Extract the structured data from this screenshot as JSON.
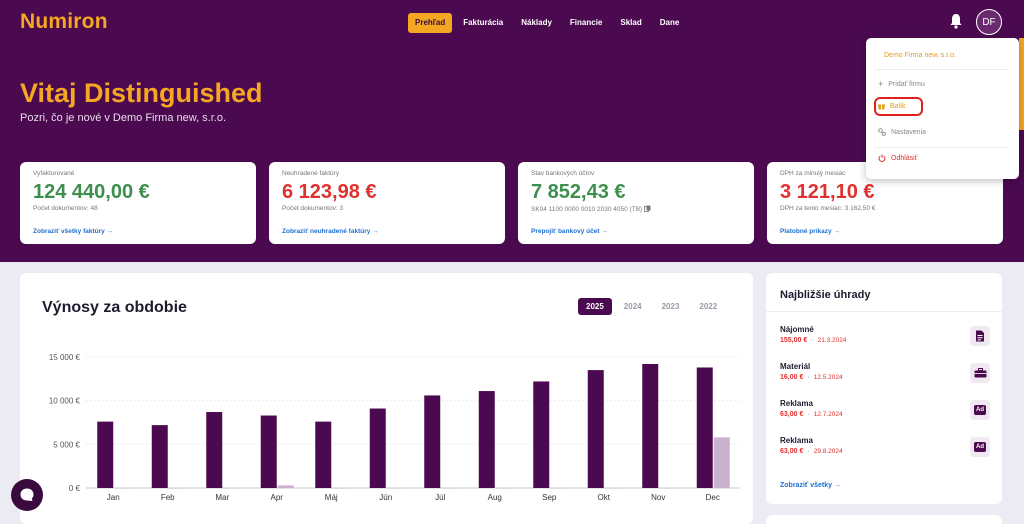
{
  "app": {
    "logo": "Numiron"
  },
  "nav": [
    {
      "label": "Prehľad",
      "active": true
    },
    {
      "label": "Fakturácia",
      "active": false
    },
    {
      "label": "Náklady",
      "active": false
    },
    {
      "label": "Financie",
      "active": false
    },
    {
      "label": "Sklad",
      "active": false
    },
    {
      "label": "Dane",
      "active": false
    }
  ],
  "user": {
    "initials": "DF"
  },
  "welcome": {
    "title": "Vitaj Distinguished",
    "subtitle": "Pozri, čo je nové v Demo Firma new, s.r.o."
  },
  "cards": [
    {
      "label": "Vyfakturované",
      "value": "124 440,00 €",
      "sub": "Počet dokumentov: 48",
      "link": "Zobraziť všetky faktúry →"
    },
    {
      "label": "Neuhradené faktúry",
      "value": "6 123,98 €",
      "sub": "Počet dokumentov: 3",
      "link": "Zobraziť neuhradené faktúry →"
    },
    {
      "label": "Stav bankových účtov",
      "value": "7 852,43 €",
      "sub": "SK04 1100 0000 0010 2030 4050 (TB)",
      "link": "Prepojiť bankový účet →"
    },
    {
      "label": "DPH za minulý mesiac",
      "value": "3 121,10 €",
      "sub": "DPH za tento mesiac: 3 162,50 €",
      "link": "Platobné príkazy →"
    }
  ],
  "revenue": {
    "title": "Výnosy za obdobie",
    "years": [
      {
        "label": "2025",
        "active": true
      },
      {
        "label": "2024",
        "active": false
      },
      {
        "label": "2023",
        "active": false
      },
      {
        "label": "2022",
        "active": false
      }
    ]
  },
  "chart_data": {
    "type": "bar",
    "title": "Výnosy za obdobie",
    "categories": [
      "Jan",
      "Feb",
      "Mar",
      "Apr",
      "Máj",
      "Jún",
      "Júl",
      "Aug",
      "Sep",
      "Okt",
      "Nov",
      "Dec"
    ],
    "series": [
      {
        "values": [
          7600,
          7200,
          8700,
          8300,
          7600,
          9100,
          10600,
          11100,
          12200,
          13500,
          14200,
          13800
        ]
      },
      {
        "values": [
          0,
          0,
          0,
          300,
          0,
          0,
          0,
          0,
          0,
          0,
          0,
          5800
        ]
      }
    ],
    "yticks": [
      "0 €",
      "5 000 €",
      "10 000 €",
      "15 000 €"
    ],
    "ytick_values": [
      0,
      5000,
      10000,
      15000
    ],
    "ylim": [
      0,
      15000
    ],
    "grid": true,
    "colors": [
      "#4b0a4f",
      "#c9b2cc"
    ]
  },
  "payments": {
    "title": "Najbližšie úhrady",
    "items": [
      {
        "name": "Nájomné",
        "amount": "155,00 €",
        "date": "21.3.2024",
        "icon": "document-icon"
      },
      {
        "name": "Materiál",
        "amount": "16,00 €",
        "date": "12.5.2024",
        "icon": "toolbox-icon"
      },
      {
        "name": "Reklama",
        "amount": "63,00 €",
        "date": "12.7.2024",
        "icon": "ad-icon",
        "badge": "Ad"
      },
      {
        "name": "Reklama",
        "amount": "63,00 €",
        "date": "29.8.2024",
        "icon": "ad-icon",
        "badge": "Ad"
      }
    ],
    "dot": "·",
    "link": "Zobraziť všetky →"
  },
  "dropdown": {
    "company": "Demo Firma new, s.r.o.",
    "add_company": "Pridať firmu",
    "package": "Balík",
    "settings": "Nastavenia",
    "logout": "Odhlásiť",
    "plus": "+"
  },
  "colors": {
    "brand": "#4b0a4f",
    "accent": "#f5a623",
    "positive": "#3d8f4e",
    "negative": "#e0312f",
    "link": "#1f6fd1"
  }
}
